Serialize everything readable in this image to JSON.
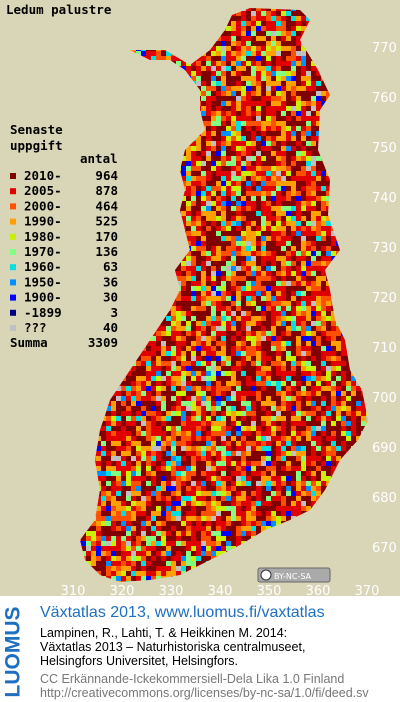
{
  "title": "Ledum palustre",
  "legend": {
    "header": [
      "Senaste",
      "uppgift"
    ],
    "count_header": "antal",
    "items": [
      {
        "label": "2010-",
        "count": 964,
        "color": "#800000"
      },
      {
        "label": "2005-",
        "count": 878,
        "color": "#e00000"
      },
      {
        "label": "2000-",
        "count": 464,
        "color": "#ff5000"
      },
      {
        "label": "1990-",
        "count": 525,
        "color": "#ffa000"
      },
      {
        "label": "1980-",
        "count": 170,
        "color": "#c8f000"
      },
      {
        "label": "1970-",
        "count": 136,
        "color": "#80ff80"
      },
      {
        "label": "1960-",
        "count": 63,
        "color": "#00e0e0"
      },
      {
        "label": "1950-",
        "count": 36,
        "color": "#0090ff"
      },
      {
        "label": "1900-",
        "count": 30,
        "color": "#0000ff"
      },
      {
        "label": "-1899",
        "count": 3,
        "color": "#000080"
      },
      {
        "label": "???",
        "count": 40,
        "color": "#c0c0c0"
      }
    ],
    "total_label": "Summa",
    "total": 3309
  },
  "northing_labels": [
    770,
    760,
    750,
    740,
    730,
    720,
    710,
    700,
    690,
    680,
    670
  ],
  "easting_labels": [
    310,
    320,
    330,
    340,
    350,
    360,
    370
  ],
  "license_badge": "BY-NC-SA",
  "footer": {
    "logo": "LUOMUS",
    "headline": "Växtatlas 2013, www.luomus.fi/vaxtatlas",
    "citation": [
      "Lampinen, R., Lahti, T. & Heikkinen M. 2014:",
      "Växtatlas 2013 – Naturhistoriska centralmuseet,",
      "Helsingfors Universitet, Helsingfors."
    ],
    "license": [
      "CC Erkännande-Ickekommersiell-Dela Lika 1.0 Finland",
      "http://creativecommons.org/licenses/by-nc-sa/1.0/fi/deed.sv"
    ]
  }
}
